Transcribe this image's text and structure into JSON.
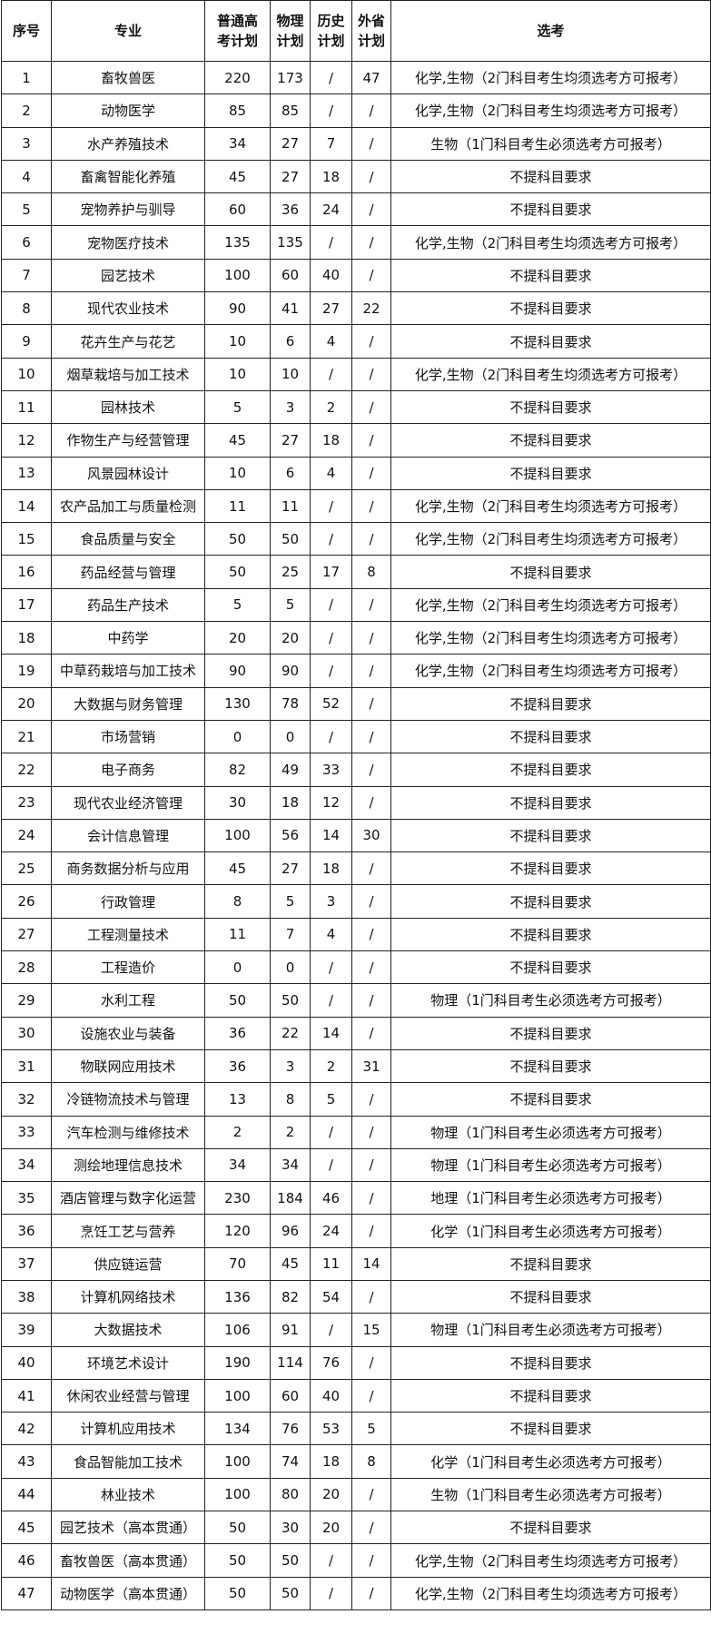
{
  "headers": [
    "序号",
    "专业",
    "普通高考计划",
    "物理计划",
    "历史计划",
    "外省计划",
    "选考"
  ],
  "rows": [
    [
      "1",
      "畜牧兽医",
      "220",
      "173",
      "/",
      "47",
      "化学,生物（2门科目考生均须选考方可报考）"
    ],
    [
      "2",
      "动物医学",
      "85",
      "85",
      "/",
      "/",
      "化学,生物（2门科目考生均须选考方可报考）"
    ],
    [
      "3",
      "水产养殖技术",
      "34",
      "27",
      "7",
      "/",
      "生物（1门科目考生必须选考方可报考）"
    ],
    [
      "4",
      "畜禽智能化养殖",
      "45",
      "27",
      "18",
      "/",
      "不提科目要求"
    ],
    [
      "5",
      "宠物养护与驯导",
      "60",
      "36",
      "24",
      "/",
      "不提科目要求"
    ],
    [
      "6",
      "宠物医疗技术",
      "135",
      "135",
      "/",
      "/",
      "化学,生物（2门科目考生均须选考方可报考）"
    ],
    [
      "7",
      "园艺技术",
      "100",
      "60",
      "40",
      "/",
      "不提科目要求"
    ],
    [
      "8",
      "现代农业技术",
      "90",
      "41",
      "27",
      "22",
      "不提科目要求"
    ],
    [
      "9",
      "花卉生产与花艺",
      "10",
      "6",
      "4",
      "/",
      "不提科目要求"
    ],
    [
      "10",
      "烟草栽培与加工技术",
      "10",
      "10",
      "/",
      "/",
      "化学,生物（2门科目考生均须选考方可报考）"
    ],
    [
      "11",
      "园林技术",
      "5",
      "3",
      "2",
      "/",
      "不提科目要求"
    ],
    [
      "12",
      "作物生产与经营管理",
      "45",
      "27",
      "18",
      "/",
      "不提科目要求"
    ],
    [
      "13",
      "风景园林设计",
      "10",
      "6",
      "4",
      "/",
      "不提科目要求"
    ],
    [
      "14",
      "农产品加工与质量检测",
      "11",
      "11",
      "/",
      "/",
      "化学,生物（2门科目考生均须选考方可报考）"
    ],
    [
      "15",
      "食品质量与安全",
      "50",
      "50",
      "/",
      "/",
      "化学,生物（2门科目考生均须选考方可报考）"
    ],
    [
      "16",
      "药品经营与管理",
      "50",
      "25",
      "17",
      "8",
      "不提科目要求"
    ],
    [
      "17",
      "药品生产技术",
      "5",
      "5",
      "/",
      "/",
      "化学,生物（2门科目考生均须选考方可报考）"
    ],
    [
      "18",
      "中药学",
      "20",
      "20",
      "/",
      "/",
      "化学,生物（2门科目考生均须选考方可报考）"
    ],
    [
      "19",
      "中草药栽培与加工技术",
      "90",
      "90",
      "/",
      "/",
      "化学,生物（2门科目考生均须选考方可报考）"
    ],
    [
      "20",
      "大数据与财务管理",
      "130",
      "78",
      "52",
      "/",
      "不提科目要求"
    ],
    [
      "21",
      "市场营销",
      "0",
      "0",
      "/",
      "/",
      "不提科目要求"
    ],
    [
      "22",
      "电子商务",
      "82",
      "49",
      "33",
      "/",
      "不提科目要求"
    ],
    [
      "23",
      "现代农业经济管理",
      "30",
      "18",
      "12",
      "/",
      "不提科目要求"
    ],
    [
      "24",
      "会计信息管理",
      "100",
      "56",
      "14",
      "30",
      "不提科目要求"
    ],
    [
      "25",
      "商务数据分析与应用",
      "45",
      "27",
      "18",
      "/",
      "不提科目要求"
    ],
    [
      "26",
      "行政管理",
      "8",
      "5",
      "3",
      "/",
      "不提科目要求"
    ],
    [
      "27",
      "工程测量技术",
      "11",
      "7",
      "4",
      "/",
      "不提科目要求"
    ],
    [
      "28",
      "工程造价",
      "0",
      "0",
      "/",
      "/",
      "不提科目要求"
    ],
    [
      "29",
      "水利工程",
      "50",
      "50",
      "/",
      "/",
      "物理（1门科目考生必须选考方可报考）"
    ],
    [
      "30",
      "设施农业与装备",
      "36",
      "22",
      "14",
      "/",
      "不提科目要求"
    ],
    [
      "31",
      "物联网应用技术",
      "36",
      "3",
      "2",
      "31",
      "不提科目要求"
    ],
    [
      "32",
      "冷链物流技术与管理",
      "13",
      "8",
      "5",
      "/",
      "不提科目要求"
    ],
    [
      "33",
      "汽车检测与维修技术",
      "2",
      "2",
      "/",
      "/",
      "物理（1门科目考生必须选考方可报考）"
    ],
    [
      "34",
      "测绘地理信息技术",
      "34",
      "34",
      "/",
      "/",
      "物理（1门科目考生必须选考方可报考）"
    ],
    [
      "35",
      "酒店管理与数字化运营",
      "230",
      "184",
      "46",
      "/",
      "地理（1门科目考生必须选考方可报考）"
    ],
    [
      "36",
      "烹饪工艺与营养",
      "120",
      "96",
      "24",
      "/",
      "化学（1门科目考生必须选考方可报考）"
    ],
    [
      "37",
      "供应链运营",
      "70",
      "45",
      "11",
      "14",
      "不提科目要求"
    ],
    [
      "38",
      "计算机网络技术",
      "136",
      "82",
      "54",
      "/",
      "不提科目要求"
    ],
    [
      "39",
      "大数据技术",
      "106",
      "91",
      "/",
      "15",
      "物理（1门科目考生必须选考方可报考）"
    ],
    [
      "40",
      "环境艺术设计",
      "190",
      "114",
      "76",
      "/",
      "不提科目要求"
    ],
    [
      "41",
      "休闲农业经营与管理",
      "100",
      "60",
      "40",
      "/",
      "不提科目要求"
    ],
    [
      "42",
      "计算机应用技术",
      "134",
      "76",
      "53",
      "5",
      "不提科目要求"
    ],
    [
      "43",
      "食品智能加工技术",
      "100",
      "74",
      "18",
      "8",
      "化学（1门科目考生必须选考方可报考）"
    ],
    [
      "44",
      "林业技术",
      "100",
      "80",
      "20",
      "/",
      "生物（1门科目考生必须选考方可报考）"
    ],
    [
      "45",
      "园艺技术（高本贯通）",
      "50",
      "30",
      "20",
      "/",
      "不提科目要求"
    ],
    [
      "46",
      "畜牧兽医（高本贯通）",
      "50",
      "50",
      "/",
      "/",
      "化学,生物（2门科目考生均须选考方可报考）"
    ],
    [
      "47",
      "动物医学（高本贯通）",
      "50",
      "50",
      "/",
      "/",
      "化学,生物（2门科目考生均须选考方可报考）"
    ]
  ]
}
